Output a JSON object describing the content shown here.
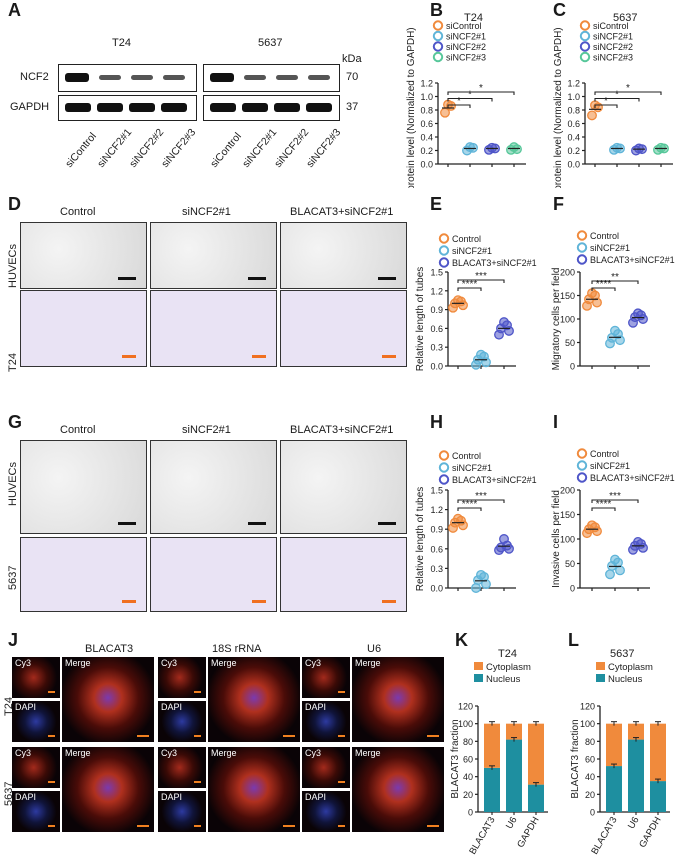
{
  "panels": {
    "A": {
      "letter": "A",
      "groups": [
        "T24",
        "5637"
      ],
      "kda_header": "kDa",
      "rows": [
        {
          "name": "NCF2",
          "kda": "70"
        },
        {
          "name": "GAPDH",
          "kda": "37"
        }
      ],
      "lanes": [
        "siControl",
        "siNCF2#1",
        "siNCF2#2",
        "siNCF2#3"
      ]
    },
    "B": {
      "letter": "B"
    },
    "C": {
      "letter": "C"
    },
    "D": {
      "letter": "D",
      "columns": [
        "Control",
        "siNCF2#1",
        "BLACAT3+siNCF2#1"
      ],
      "rows": [
        "HUVECs",
        "T24"
      ]
    },
    "E": {
      "letter": "E"
    },
    "F": {
      "letter": "F"
    },
    "G": {
      "letter": "G",
      "columns": [
        "Control",
        "siNCF2#1",
        "BLACAT3+siNCF2#1"
      ],
      "rows": [
        "HUVECs",
        "5637"
      ]
    },
    "H": {
      "letter": "H"
    },
    "I": {
      "letter": "I"
    },
    "J": {
      "letter": "J",
      "groups": [
        "BLACAT3",
        "18S rRNA",
        "U6"
      ],
      "rows": [
        "T24",
        "5637"
      ],
      "channel_cy3": "Cy3",
      "channel_dapi": "DAPI",
      "merge": "Merge"
    },
    "K": {
      "letter": "K"
    },
    "L": {
      "letter": "L"
    }
  },
  "chart_data": [
    {
      "panel": "B",
      "type": "scatter",
      "title": "T24",
      "ylabel": "NCF2 protein level (Normalized to GAPDH)",
      "ylim": [
        0,
        1.2
      ],
      "yticks": [
        "0.0",
        "0.2",
        "0.4",
        "0.6",
        "0.8",
        "1.0",
        "1.2"
      ],
      "legend": [
        "siControl",
        "siNCF2#1",
        "siNCF2#2",
        "siNCF2#3"
      ],
      "colors": [
        "#f08a3c",
        "#5fb4d8",
        "#4e55c8",
        "#57c79a"
      ],
      "series": [
        {
          "name": "siControl",
          "values": [
            0.76,
            0.86,
            0.88
          ],
          "mean": 0.83
        },
        {
          "name": "siNCF2#1",
          "values": [
            0.2,
            0.24,
            0.25
          ],
          "mean": 0.23
        },
        {
          "name": "siNCF2#2",
          "values": [
            0.21,
            0.23,
            0.24
          ],
          "mean": 0.23
        },
        {
          "name": "siNCF2#3",
          "values": [
            0.21,
            0.22,
            0.25
          ],
          "mean": 0.23
        }
      ],
      "sig": [
        "*",
        "*",
        "*"
      ]
    },
    {
      "panel": "C",
      "type": "scatter",
      "title": "5637",
      "ylabel": "NCF2 protein level (Normalized to GAPDH)",
      "ylim": [
        0,
        1.2
      ],
      "yticks": [
        "0.0",
        "0.2",
        "0.4",
        "0.6",
        "0.8",
        "1.0",
        "1.2"
      ],
      "legend": [
        "siControl",
        "siNCF2#1",
        "siNCF2#2",
        "siNCF2#3"
      ],
      "colors": [
        "#f08a3c",
        "#5fb4d8",
        "#4e55c8",
        "#57c79a"
      ],
      "series": [
        {
          "name": "siControl",
          "values": [
            0.72,
            0.84,
            0.87
          ],
          "mean": 0.81
        },
        {
          "name": "siNCF2#1",
          "values": [
            0.21,
            0.23,
            0.24
          ],
          "mean": 0.23
        },
        {
          "name": "siNCF2#2",
          "values": [
            0.2,
            0.22,
            0.23
          ],
          "mean": 0.22
        },
        {
          "name": "siNCF2#3",
          "values": [
            0.21,
            0.23,
            0.24
          ],
          "mean": 0.23
        }
      ],
      "sig": [
        "*",
        "*",
        "*"
      ]
    },
    {
      "panel": "E",
      "type": "scatter",
      "ylabel": "Relative length of tubes",
      "ylim": [
        0,
        1.5
      ],
      "yticks": [
        "0.0",
        "0.3",
        "0.6",
        "0.9",
        "1.2",
        "1.5"
      ],
      "legend": [
        "Control",
        "siNCF2#1",
        "BLACAT3+siNCF2#1"
      ],
      "colors": [
        "#f08a3c",
        "#5fb4d8",
        "#4e55c8"
      ],
      "series": [
        {
          "name": "Control",
          "values": [
            0.93,
            0.97,
            1.0,
            1.03,
            1.05
          ],
          "mean": 1.0
        },
        {
          "name": "siNCF2#1",
          "values": [
            0.02,
            0.06,
            0.1,
            0.15,
            0.18
          ],
          "mean": 0.1
        },
        {
          "name": "BLACAT3+siNCF2#1",
          "values": [
            0.5,
            0.56,
            0.6,
            0.65,
            0.7
          ],
          "mean": 0.6
        }
      ],
      "sig": [
        "****",
        "***"
      ]
    },
    {
      "panel": "F",
      "type": "scatter",
      "ylabel": "Migratory cells per field",
      "ylim": [
        0,
        200
      ],
      "yticks": [
        "0",
        "50",
        "100",
        "150",
        "200"
      ],
      "legend": [
        "Control",
        "siNCF2#1",
        "BLACAT3+siNCF2#1"
      ],
      "colors": [
        "#f08a3c",
        "#5fb4d8",
        "#4e55c8"
      ],
      "series": [
        {
          "name": "Control",
          "values": [
            128,
            135,
            142,
            150,
            155
          ],
          "mean": 142
        },
        {
          "name": "siNCF2#1",
          "values": [
            48,
            55,
            60,
            68,
            75
          ],
          "mean": 61
        },
        {
          "name": "BLACAT3+siNCF2#1",
          "values": [
            92,
            100,
            104,
            108,
            112
          ],
          "mean": 103
        }
      ],
      "sig": [
        "****",
        "**"
      ]
    },
    {
      "panel": "H",
      "type": "scatter",
      "ylabel": "Relative length of tubes",
      "ylim": [
        0,
        1.5
      ],
      "yticks": [
        "0.0",
        "0.3",
        "0.6",
        "0.9",
        "1.2",
        "1.5"
      ],
      "legend": [
        "Control",
        "siNCF2#1",
        "BLACAT3+siNCF2#1"
      ],
      "colors": [
        "#f08a3c",
        "#5fb4d8",
        "#4e55c8"
      ],
      "series": [
        {
          "name": "Control",
          "values": [
            0.92,
            0.96,
            1.0,
            1.03,
            1.06
          ],
          "mean": 1.0
        },
        {
          "name": "siNCF2#1",
          "values": [
            0.0,
            0.06,
            0.12,
            0.17,
            0.2
          ],
          "mean": 0.11
        },
        {
          "name": "BLACAT3+siNCF2#1",
          "values": [
            0.58,
            0.6,
            0.62,
            0.65,
            0.75
          ],
          "mean": 0.64
        }
      ],
      "sig": [
        "****",
        "***"
      ]
    },
    {
      "panel": "I",
      "type": "scatter",
      "ylabel": "Invasive cells per field",
      "ylim": [
        0,
        200
      ],
      "yticks": [
        "0",
        "50",
        "100",
        "150",
        "200"
      ],
      "legend": [
        "Control",
        "siNCF2#1",
        "BLACAT3+siNCF2#1"
      ],
      "colors": [
        "#f08a3c",
        "#5fb4d8",
        "#4e55c8"
      ],
      "series": [
        {
          "name": "Control",
          "values": [
            112,
            116,
            120,
            124,
            128
          ],
          "mean": 120
        },
        {
          "name": "siNCF2#1",
          "values": [
            28,
            36,
            45,
            52,
            58
          ],
          "mean": 44
        },
        {
          "name": "BLACAT3+siNCF2#1",
          "values": [
            78,
            82,
            86,
            90,
            94
          ],
          "mean": 86
        }
      ],
      "sig": [
        "****",
        "***"
      ]
    },
    {
      "panel": "K",
      "type": "bar",
      "stacked": true,
      "title": "T24",
      "ylabel": "BLACAT3 fraction",
      "ylim": [
        0,
        120
      ],
      "yticks": [
        "0",
        "20",
        "40",
        "60",
        "80",
        "100",
        "120"
      ],
      "categories": [
        "BLACAT3",
        "U6",
        "GAPDH"
      ],
      "colors": {
        "Nucleus": "#1e8fa0",
        "Cytoplasm": "#f08a3c"
      },
      "series": [
        {
          "name": "Nucleus",
          "values": [
            50,
            82,
            31
          ]
        },
        {
          "name": "Cytoplasm",
          "values": [
            50,
            18,
            69
          ]
        }
      ],
      "legend": [
        "Cytoplasm",
        "Nucleus"
      ]
    },
    {
      "panel": "L",
      "type": "bar",
      "stacked": true,
      "title": "5637",
      "ylabel": "BLACAT3 fraction",
      "ylim": [
        0,
        120
      ],
      "yticks": [
        "0",
        "20",
        "40",
        "60",
        "80",
        "100",
        "120"
      ],
      "categories": [
        "BLACAT3",
        "U6",
        "GAPDH"
      ],
      "colors": {
        "Nucleus": "#1e8fa0",
        "Cytoplasm": "#f08a3c"
      },
      "series": [
        {
          "name": "Nucleus",
          "values": [
            52,
            82,
            35
          ]
        },
        {
          "name": "Cytoplasm",
          "values": [
            48,
            18,
            65
          ]
        }
      ],
      "legend": [
        "Cytoplasm",
        "Nucleus"
      ]
    }
  ]
}
